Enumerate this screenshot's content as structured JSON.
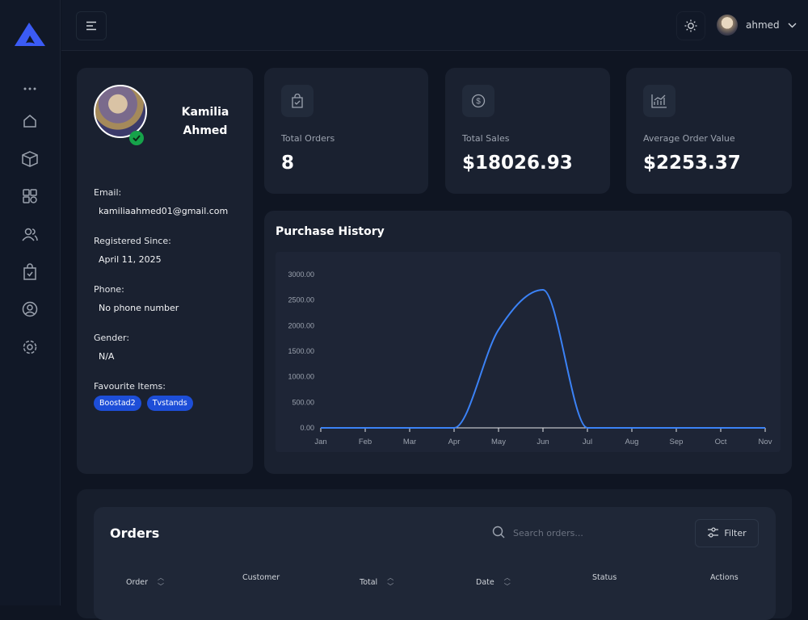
{
  "header": {
    "username": "ahmed"
  },
  "sidebar": {
    "items": [
      "more",
      "home",
      "products",
      "categories",
      "customers",
      "orders",
      "profile",
      "settings"
    ]
  },
  "profile": {
    "name_first": "Kamilia",
    "name_last": "Ahmed",
    "email_label": "Email:",
    "email": "kamiliaahmed01@gmail.com",
    "registered_label": "Registered Since:",
    "registered": "April 11, 2025",
    "phone_label": "Phone:",
    "phone": "No phone number",
    "gender_label": "Gender:",
    "gender": "N/A",
    "favourites_label": "Favourite Items:",
    "favourites": [
      "Boostad2",
      "Tvstands"
    ]
  },
  "stats": [
    {
      "label": "Total Orders",
      "value": "8",
      "icon": "shopping-bag-icon"
    },
    {
      "label": "Total Sales",
      "value": "$18026.93",
      "icon": "dollar-icon"
    },
    {
      "label": "Average Order Value",
      "value": "$2253.37",
      "icon": "chart-icon"
    }
  ],
  "chart_title": "Purchase History",
  "chart_data": {
    "type": "line",
    "categories": [
      "Jan",
      "Feb",
      "Mar",
      "Apr",
      "May",
      "Jun",
      "Jul",
      "Aug",
      "Sep",
      "Oct",
      "Nov"
    ],
    "values": [
      0,
      0,
      0,
      0,
      1920,
      2700,
      0,
      0,
      0,
      0,
      0
    ],
    "ylim": [
      0,
      3000
    ],
    "yticks": [
      "0.00",
      "500.00",
      "1000.00",
      "1500.00",
      "2000.00",
      "2500.00",
      "3000.00"
    ],
    "color": "#3b82f6",
    "grid": false
  },
  "orders": {
    "title": "Orders",
    "search_placeholder": "Search orders...",
    "filter_label": "Filter",
    "columns": [
      "Order",
      "Customer",
      "Total",
      "Date",
      "Status",
      "Actions"
    ]
  }
}
